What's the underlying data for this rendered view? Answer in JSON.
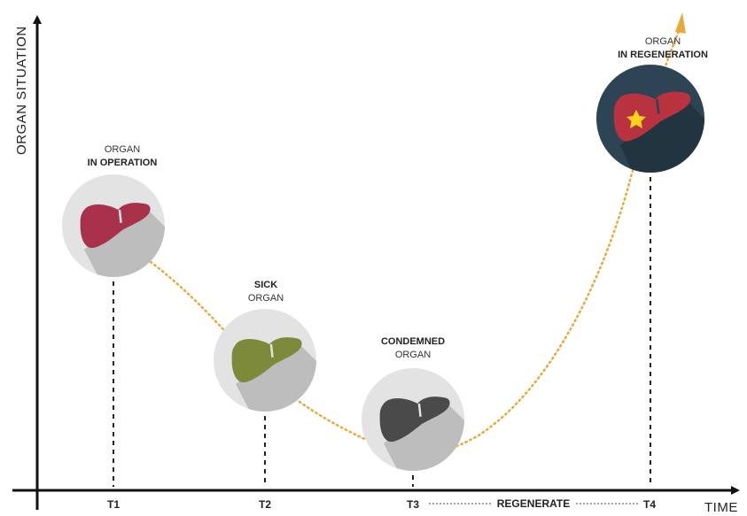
{
  "axes": {
    "y_label": "ORGAN SITUATION",
    "x_label": "TIME"
  },
  "ticks": [
    "T1",
    "T2",
    "T3",
    "T4"
  ],
  "regenerate_label": "REGENERATE",
  "stages": [
    {
      "line1": "ORGAN",
      "line2": "IN OPERATION",
      "line1_bold": false,
      "line2_bold": true
    },
    {
      "line1": "SICK",
      "line2": "ORGAN",
      "line1_bold": true,
      "line2_bold": false
    },
    {
      "line1": "CONDEMNED",
      "line2": "ORGAN",
      "line1_bold": true,
      "line2_bold": false
    },
    {
      "line1": "ORGAN",
      "line2": "IN REGENERATION",
      "line1_bold": false,
      "line2_bold": true
    }
  ],
  "colors": {
    "axis": "#111111",
    "curve": "#e9a93a",
    "healthy_liver": "#a8324a",
    "sick_liver": "#7d8a3a",
    "condemned_liver": "#4a4a4a",
    "regenerated_liver": "#b8323f",
    "light_circle": "#e3e3e3",
    "dark_circle": "#2d4454",
    "star": "#ffd21f"
  },
  "icons": [
    "liver-icon",
    "star-icon",
    "arrow-icon"
  ]
}
